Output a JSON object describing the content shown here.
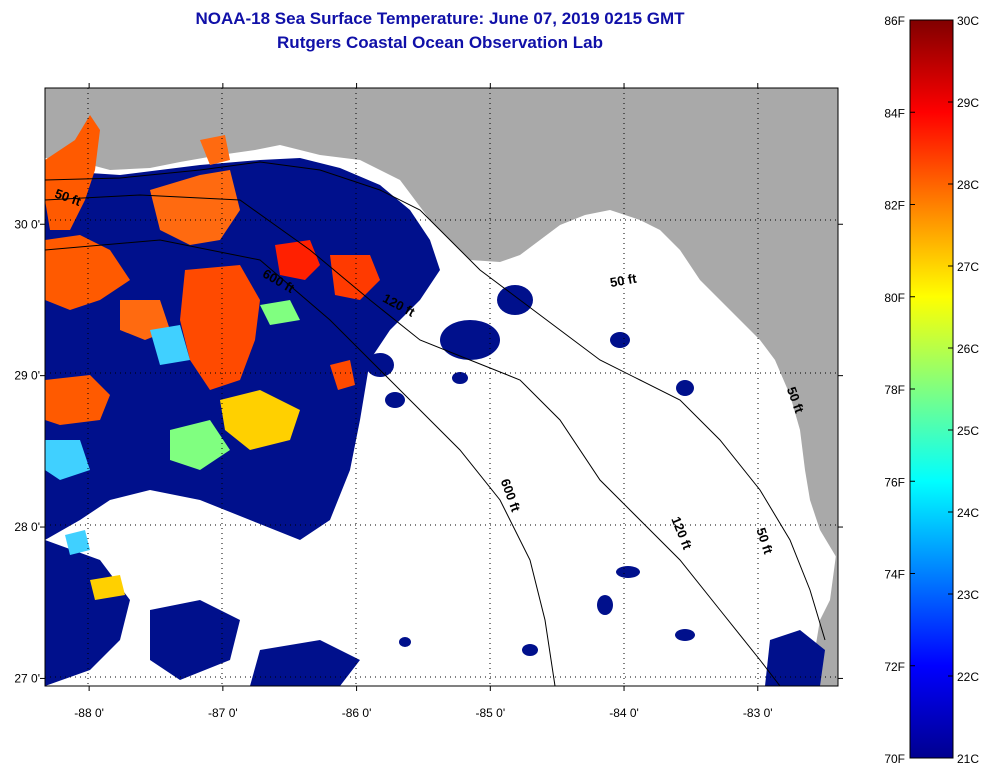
{
  "header": {
    "title": "NOAA-18 Sea Surface Temperature:  June 07, 2019 0215 GMT",
    "subtitle": "Rutgers Coastal Ocean Observation Lab"
  },
  "map": {
    "lon_range": [
      -88.33,
      -82.4
    ],
    "lat_range": [
      26.95,
      30.9
    ],
    "lon_ticks": [
      {
        "value": -88,
        "label": "-88 0'"
      },
      {
        "value": -87,
        "label": "-87 0'"
      },
      {
        "value": -86,
        "label": "-86 0'"
      },
      {
        "value": -85,
        "label": "-85 0'"
      },
      {
        "value": -84,
        "label": "-84 0'"
      },
      {
        "value": -83,
        "label": "-83 0'"
      }
    ],
    "lat_ticks": [
      {
        "value": 30,
        "label": "30 0'"
      },
      {
        "value": 29,
        "label": "29 0'"
      },
      {
        "value": 28,
        "label": "28 0'"
      },
      {
        "value": 27,
        "label": "27 0'"
      }
    ],
    "contour_labels": [
      {
        "text": "50 ft",
        "lon": -88.17,
        "lat": 30.15,
        "rotate": 20
      },
      {
        "text": "600 ft",
        "lon": -86.6,
        "lat": 29.6,
        "rotate": 30
      },
      {
        "text": "120 ft",
        "lon": -85.7,
        "lat": 29.44,
        "rotate": 28
      },
      {
        "text": "50 ft",
        "lon": -84.0,
        "lat": 29.6,
        "rotate": -10
      },
      {
        "text": "600 ft",
        "lon": -84.88,
        "lat": 28.2,
        "rotate": 70
      },
      {
        "text": "120 ft",
        "lon": -83.6,
        "lat": 27.95,
        "rotate": 68
      },
      {
        "text": "50 ft",
        "lon": -82.98,
        "lat": 27.9,
        "rotate": 72
      },
      {
        "text": "50 ft",
        "lon": -82.75,
        "lat": 28.83,
        "rotate": 70
      }
    ],
    "colors": {
      "land": "#a9a9a9",
      "no_data": "#ffffff",
      "cold": "#00108c",
      "warm": "#ff5a00",
      "hot": "#ff2000",
      "mid": "#ffd000",
      "cyan": "#40d0ff"
    }
  },
  "colorbar": {
    "f_labels": [
      "86F",
      "84F",
      "82F",
      "80F",
      "78F",
      "76F",
      "74F",
      "72F",
      "70F"
    ],
    "c_labels": [
      "30C",
      "29C",
      "28C",
      "27C",
      "26C",
      "25C",
      "24C",
      "23C",
      "22C",
      "21C"
    ],
    "stops": [
      "#00008f",
      "#0000ff",
      "#0080ff",
      "#00ffff",
      "#80ff80",
      "#ffff00",
      "#ff8000",
      "#ff0000",
      "#800000"
    ]
  }
}
